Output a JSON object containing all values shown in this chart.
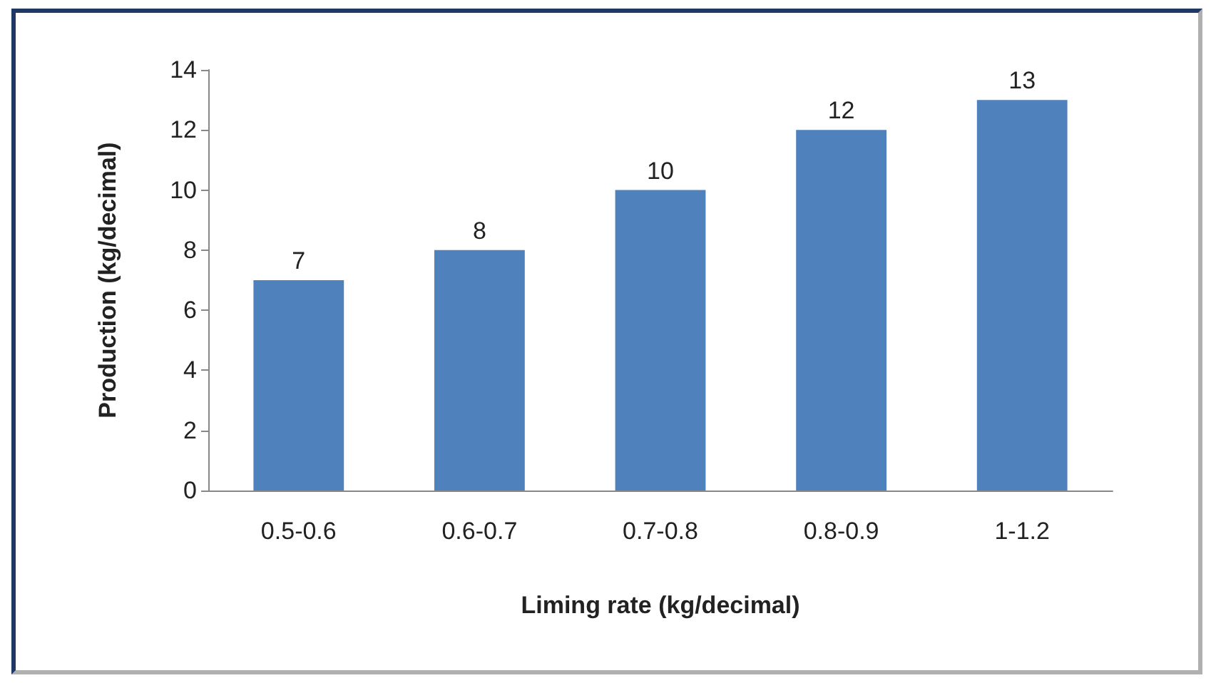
{
  "chart_data": {
    "type": "bar",
    "xlabel": "Liming rate (kg/decimal)",
    "ylabel": "Production (kg/decimal)",
    "categories": [
      "0.5-0.6",
      "0.6-0.7",
      "0.7-0.8",
      "0.8-0.9",
      "1-1.2"
    ],
    "series": [
      {
        "color": "#4f81bd",
        "values": [
          7,
          8,
          10,
          12,
          13
        ]
      }
    ],
    "ylim": [
      0,
      14
    ],
    "yticks": [
      0,
      2,
      4,
      6,
      8,
      10,
      12,
      14
    ],
    "grid": false,
    "data_labels": true
  }
}
